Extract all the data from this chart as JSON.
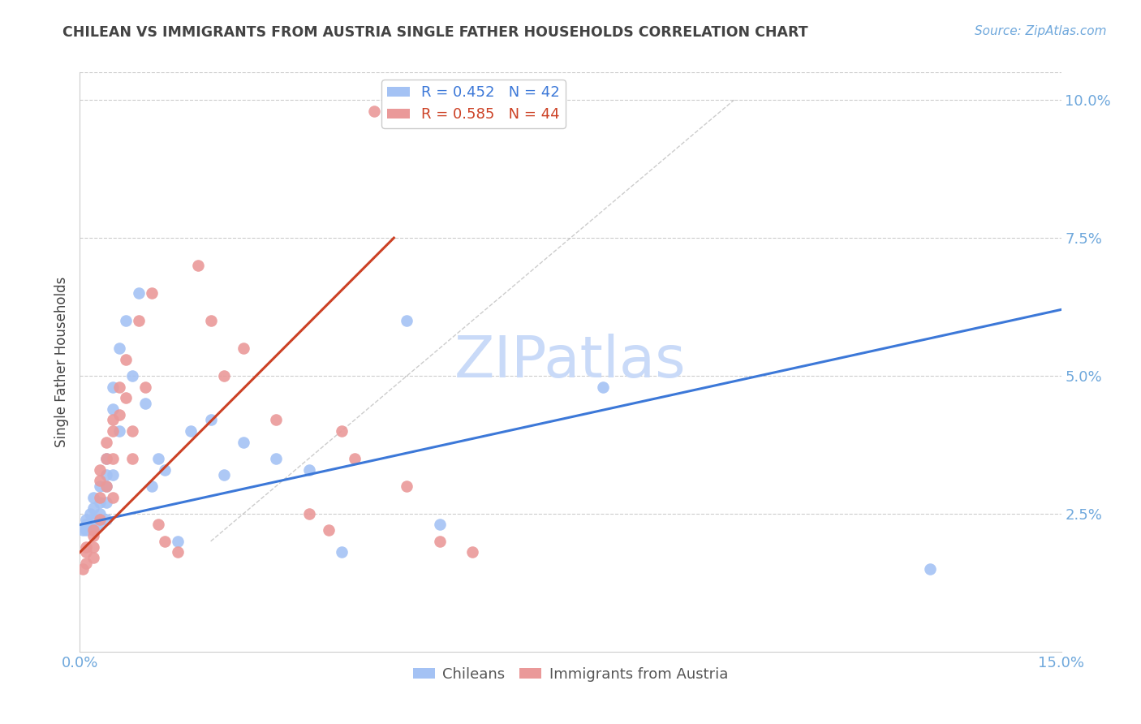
{
  "title": "CHILEAN VS IMMIGRANTS FROM AUSTRIA SINGLE FATHER HOUSEHOLDS CORRELATION CHART",
  "source": "Source: ZipAtlas.com",
  "ylabel": "Single Father Households",
  "x_min": 0.0,
  "x_max": 0.15,
  "y_min": 0.0,
  "y_max": 0.105,
  "color_blue": "#a4c2f4",
  "color_pink": "#ea9999",
  "color_line_blue": "#3c78d8",
  "color_line_pink": "#cc4125",
  "color_title": "#434343",
  "color_axis_label": "#434343",
  "color_tick": "#6fa8dc",
  "color_source": "#6fa8dc",
  "color_watermark": "#c9daf8",
  "legend_label_blue": "R = 0.452   N = 42",
  "legend_label_pink": "R = 0.585   N = 44",
  "chileans_x": [
    0.0005,
    0.001,
    0.001,
    0.001,
    0.0015,
    0.002,
    0.002,
    0.002,
    0.002,
    0.003,
    0.003,
    0.003,
    0.003,
    0.004,
    0.004,
    0.004,
    0.004,
    0.004,
    0.005,
    0.005,
    0.005,
    0.006,
    0.006,
    0.007,
    0.008,
    0.009,
    0.01,
    0.011,
    0.012,
    0.013,
    0.015,
    0.017,
    0.02,
    0.022,
    0.025,
    0.03,
    0.035,
    0.04,
    0.05,
    0.055,
    0.08,
    0.13
  ],
  "chileans_y": [
    0.022,
    0.024,
    0.023,
    0.022,
    0.025,
    0.028,
    0.026,
    0.024,
    0.022,
    0.03,
    0.027,
    0.025,
    0.023,
    0.035,
    0.032,
    0.03,
    0.027,
    0.024,
    0.048,
    0.044,
    0.032,
    0.055,
    0.04,
    0.06,
    0.05,
    0.065,
    0.045,
    0.03,
    0.035,
    0.033,
    0.02,
    0.04,
    0.042,
    0.032,
    0.038,
    0.035,
    0.033,
    0.018,
    0.06,
    0.023,
    0.048,
    0.015
  ],
  "austria_x": [
    0.0005,
    0.001,
    0.001,
    0.001,
    0.002,
    0.002,
    0.002,
    0.002,
    0.003,
    0.003,
    0.003,
    0.003,
    0.004,
    0.004,
    0.004,
    0.005,
    0.005,
    0.005,
    0.005,
    0.006,
    0.006,
    0.007,
    0.007,
    0.008,
    0.008,
    0.009,
    0.01,
    0.011,
    0.012,
    0.013,
    0.015,
    0.018,
    0.02,
    0.022,
    0.025,
    0.03,
    0.035,
    0.038,
    0.04,
    0.042,
    0.045,
    0.05,
    0.055,
    0.06
  ],
  "austria_y": [
    0.015,
    0.019,
    0.018,
    0.016,
    0.022,
    0.021,
    0.019,
    0.017,
    0.033,
    0.031,
    0.028,
    0.024,
    0.038,
    0.035,
    0.03,
    0.042,
    0.04,
    0.035,
    0.028,
    0.048,
    0.043,
    0.053,
    0.046,
    0.04,
    0.035,
    0.06,
    0.048,
    0.065,
    0.023,
    0.02,
    0.018,
    0.07,
    0.06,
    0.05,
    0.055,
    0.042,
    0.025,
    0.022,
    0.04,
    0.035,
    0.098,
    0.03,
    0.02,
    0.018
  ],
  "blue_trend_x": [
    0.0,
    0.15
  ],
  "blue_trend_y": [
    0.023,
    0.062
  ],
  "pink_trend_x": [
    0.0,
    0.048
  ],
  "pink_trend_y": [
    0.018,
    0.075
  ],
  "diag_line_x": [
    0.02,
    0.1
  ],
  "diag_line_y": [
    0.02,
    0.1
  ]
}
